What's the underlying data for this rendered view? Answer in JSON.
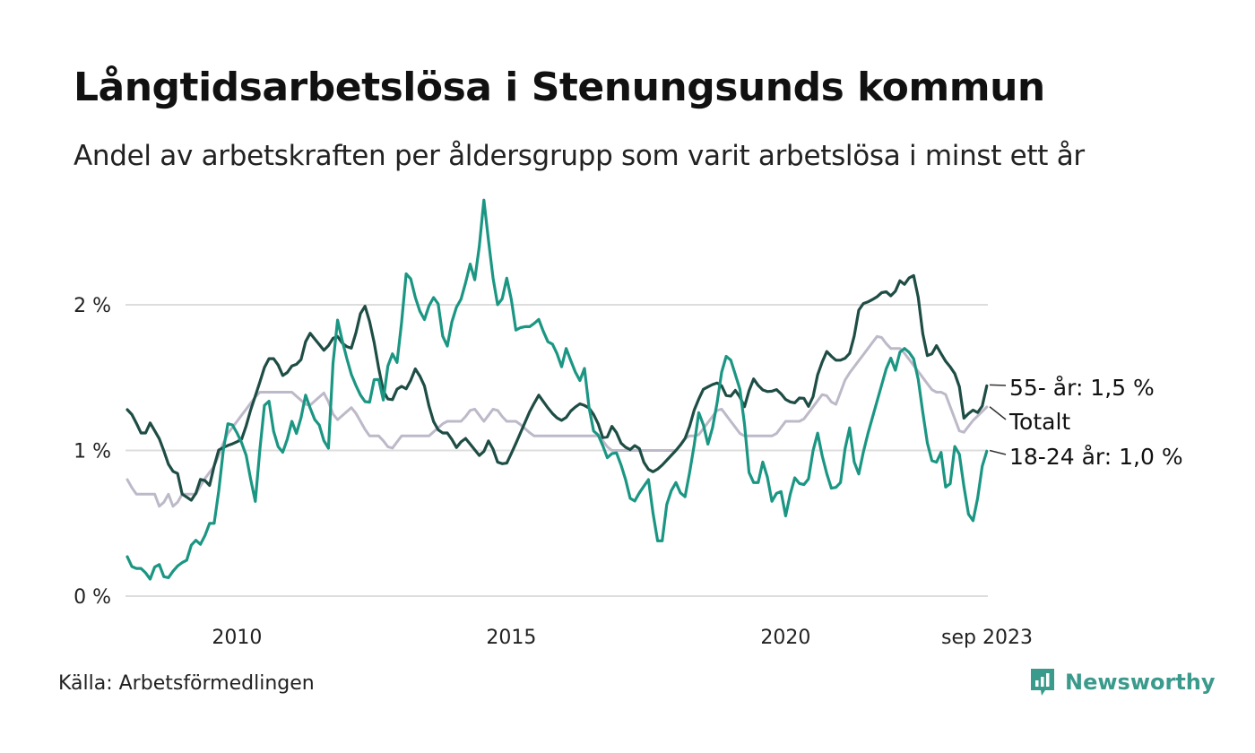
{
  "title": "Långtidsarbetslösa i Stenungsunds kommun",
  "subtitle": "Andel av arbetskraften per åldersgrupp som varit arbetslösa i minst ett år",
  "source": "Källa: Arbetsförmedlingen",
  "brand": "Newsworthy",
  "colors": {
    "older": "#1e4d45",
    "young": "#1b9683",
    "total": "#bdb9c9",
    "grid": "#dddddd",
    "brand": "#3a9a8c"
  },
  "chart_data": {
    "type": "line",
    "x_start": 2008.0,
    "x_step": 0.08333,
    "x_range": [
      2008.0,
      2023.67
    ],
    "ylim": [
      0,
      2.8
    ],
    "yticks": [
      {
        "value": 0,
        "label": "0 %"
      },
      {
        "value": 1,
        "label": "1 %"
      },
      {
        "value": 2,
        "label": "2 %"
      }
    ],
    "xticks": [
      {
        "value": 2010,
        "label": "2010"
      },
      {
        "value": 2015,
        "label": "2015"
      },
      {
        "value": 2020,
        "label": "2020"
      },
      {
        "value": 2023.67,
        "label": "sep 2023"
      }
    ],
    "grid": true,
    "series": [
      {
        "key": "total",
        "name": "Totalt",
        "label": "Totalt",
        "anchors": [
          [
            2008.0,
            0.8
          ],
          [
            2008.15,
            0.7
          ],
          [
            2008.5,
            0.7
          ],
          [
            2008.6,
            0.6
          ],
          [
            2008.75,
            0.7
          ],
          [
            2008.85,
            0.6
          ],
          [
            2009.0,
            0.7
          ],
          [
            2009.25,
            0.7
          ],
          [
            2009.4,
            0.8
          ],
          [
            2009.6,
            0.9
          ],
          [
            2009.8,
            1.1
          ],
          [
            2010.0,
            1.2
          ],
          [
            2010.2,
            1.3
          ],
          [
            2010.4,
            1.4
          ],
          [
            2011.0,
            1.4
          ],
          [
            2011.3,
            1.3
          ],
          [
            2011.6,
            1.4
          ],
          [
            2011.8,
            1.2
          ],
          [
            2012.1,
            1.3
          ],
          [
            2012.4,
            1.1
          ],
          [
            2012.6,
            1.1
          ],
          [
            2012.8,
            1.0
          ],
          [
            2013.0,
            1.1
          ],
          [
            2013.5,
            1.1
          ],
          [
            2013.8,
            1.2
          ],
          [
            2014.1,
            1.2
          ],
          [
            2014.3,
            1.3
          ],
          [
            2014.5,
            1.2
          ],
          [
            2014.7,
            1.3
          ],
          [
            2014.9,
            1.2
          ],
          [
            2015.1,
            1.2
          ],
          [
            2015.4,
            1.1
          ],
          [
            2016.0,
            1.1
          ],
          [
            2016.3,
            1.1
          ],
          [
            2016.6,
            1.1
          ],
          [
            2016.8,
            1.0
          ],
          [
            2017.2,
            1.0
          ],
          [
            2017.5,
            1.0
          ],
          [
            2017.8,
            1.0
          ],
          [
            2018.0,
            1.0
          ],
          [
            2018.2,
            1.1
          ],
          [
            2018.4,
            1.1
          ],
          [
            2018.6,
            1.2
          ],
          [
            2018.8,
            1.3
          ],
          [
            2019.0,
            1.2
          ],
          [
            2019.2,
            1.1
          ],
          [
            2019.5,
            1.1
          ],
          [
            2019.8,
            1.1
          ],
          [
            2020.0,
            1.2
          ],
          [
            2020.3,
            1.2
          ],
          [
            2020.5,
            1.3
          ],
          [
            2020.7,
            1.4
          ],
          [
            2020.9,
            1.3
          ],
          [
            2021.1,
            1.5
          ],
          [
            2021.3,
            1.6
          ],
          [
            2021.5,
            1.7
          ],
          [
            2021.7,
            1.8
          ],
          [
            2021.9,
            1.7
          ],
          [
            2022.1,
            1.7
          ],
          [
            2022.3,
            1.6
          ],
          [
            2022.5,
            1.5
          ],
          [
            2022.7,
            1.4
          ],
          [
            2022.9,
            1.4
          ],
          [
            2023.1,
            1.2
          ],
          [
            2023.2,
            1.1
          ],
          [
            2023.4,
            1.2
          ],
          [
            2023.67,
            1.3
          ]
        ]
      },
      {
        "key": "older",
        "name": "55- år",
        "label": "55- år: 1,5 %",
        "anchors": [
          [
            2008.0,
            1.28
          ],
          [
            2008.1,
            1.24
          ],
          [
            2008.3,
            1.08
          ],
          [
            2008.4,
            1.2
          ],
          [
            2008.6,
            1.07
          ],
          [
            2008.8,
            0.85
          ],
          [
            2008.9,
            0.87
          ],
          [
            2009.0,
            0.7
          ],
          [
            2009.2,
            0.65
          ],
          [
            2009.35,
            0.82
          ],
          [
            2009.5,
            0.76
          ],
          [
            2009.65,
            1.0
          ],
          [
            2009.8,
            1.03
          ],
          [
            2009.95,
            1.05
          ],
          [
            2010.1,
            1.08
          ],
          [
            2010.25,
            1.28
          ],
          [
            2010.4,
            1.45
          ],
          [
            2010.55,
            1.63
          ],
          [
            2010.7,
            1.63
          ],
          [
            2010.85,
            1.5
          ],
          [
            2011.0,
            1.58
          ],
          [
            2011.15,
            1.6
          ],
          [
            2011.3,
            1.82
          ],
          [
            2011.45,
            1.75
          ],
          [
            2011.6,
            1.68
          ],
          [
            2011.8,
            1.8
          ],
          [
            2011.95,
            1.72
          ],
          [
            2012.1,
            1.7
          ],
          [
            2012.25,
            1.94
          ],
          [
            2012.35,
            2.0
          ],
          [
            2012.5,
            1.74
          ],
          [
            2012.65,
            1.42
          ],
          [
            2012.8,
            1.32
          ],
          [
            2012.95,
            1.45
          ],
          [
            2013.1,
            1.42
          ],
          [
            2013.25,
            1.56
          ],
          [
            2013.4,
            1.47
          ],
          [
            2013.55,
            1.22
          ],
          [
            2013.7,
            1.12
          ],
          [
            2013.85,
            1.12
          ],
          [
            2014.0,
            1.02
          ],
          [
            2014.15,
            1.09
          ],
          [
            2014.3,
            1.02
          ],
          [
            2014.45,
            0.95
          ],
          [
            2014.6,
            1.08
          ],
          [
            2014.75,
            0.92
          ],
          [
            2014.9,
            0.9
          ],
          [
            2015.05,
            1.02
          ],
          [
            2015.2,
            1.15
          ],
          [
            2015.35,
            1.28
          ],
          [
            2015.5,
            1.38
          ],
          [
            2015.65,
            1.3
          ],
          [
            2015.8,
            1.23
          ],
          [
            2015.95,
            1.2
          ],
          [
            2016.1,
            1.28
          ],
          [
            2016.25,
            1.32
          ],
          [
            2016.4,
            1.3
          ],
          [
            2016.55,
            1.22
          ],
          [
            2016.7,
            1.05
          ],
          [
            2016.85,
            1.18
          ],
          [
            2017.0,
            1.05
          ],
          [
            2017.15,
            1.0
          ],
          [
            2017.3,
            1.05
          ],
          [
            2017.45,
            0.88
          ],
          [
            2017.6,
            0.85
          ],
          [
            2017.75,
            0.9
          ],
          [
            2017.9,
            0.96
          ],
          [
            2018.05,
            1.02
          ],
          [
            2018.2,
            1.1
          ],
          [
            2018.35,
            1.3
          ],
          [
            2018.5,
            1.42
          ],
          [
            2018.65,
            1.45
          ],
          [
            2018.8,
            1.47
          ],
          [
            2018.95,
            1.35
          ],
          [
            2019.1,
            1.42
          ],
          [
            2019.25,
            1.3
          ],
          [
            2019.4,
            1.5
          ],
          [
            2019.55,
            1.42
          ],
          [
            2019.7,
            1.4
          ],
          [
            2019.85,
            1.42
          ],
          [
            2020.0,
            1.35
          ],
          [
            2020.15,
            1.32
          ],
          [
            2020.3,
            1.38
          ],
          [
            2020.45,
            1.28
          ],
          [
            2020.6,
            1.55
          ],
          [
            2020.75,
            1.68
          ],
          [
            2020.9,
            1.62
          ],
          [
            2021.05,
            1.62
          ],
          [
            2021.2,
            1.68
          ],
          [
            2021.35,
            2.0
          ],
          [
            2021.5,
            2.02
          ],
          [
            2021.65,
            2.05
          ],
          [
            2021.8,
            2.1
          ],
          [
            2021.95,
            2.05
          ],
          [
            2022.1,
            2.18
          ],
          [
            2022.2,
            2.12
          ],
          [
            2022.3,
            2.25
          ],
          [
            2022.4,
            2.1
          ],
          [
            2022.5,
            1.8
          ],
          [
            2022.6,
            1.62
          ],
          [
            2022.75,
            1.72
          ],
          [
            2022.9,
            1.62
          ],
          [
            2023.05,
            1.55
          ],
          [
            2023.15,
            1.48
          ],
          [
            2023.25,
            1.22
          ],
          [
            2023.4,
            1.28
          ],
          [
            2023.55,
            1.25
          ],
          [
            2023.67,
            1.45
          ]
        ]
      },
      {
        "key": "young",
        "name": "18-24 år",
        "label": "18-24 år: 1,0 %",
        "anchors": [
          [
            2008.0,
            0.27
          ],
          [
            2008.1,
            0.19
          ],
          [
            2008.3,
            0.19
          ],
          [
            2008.4,
            0.1
          ],
          [
            2008.55,
            0.25
          ],
          [
            2008.7,
            0.1
          ],
          [
            2008.85,
            0.18
          ],
          [
            2008.95,
            0.22
          ],
          [
            2009.1,
            0.25
          ],
          [
            2009.2,
            0.4
          ],
          [
            2009.35,
            0.35
          ],
          [
            2009.5,
            0.5
          ],
          [
            2009.6,
            0.5
          ],
          [
            2009.75,
            1.0
          ],
          [
            2009.85,
            1.22
          ],
          [
            2010.0,
            1.12
          ],
          [
            2010.15,
            1.0
          ],
          [
            2010.25,
            0.8
          ],
          [
            2010.35,
            0.62
          ],
          [
            2010.45,
            1.2
          ],
          [
            2010.55,
            1.42
          ],
          [
            2010.7,
            1.05
          ],
          [
            2010.85,
            0.98
          ],
          [
            2011.0,
            1.2
          ],
          [
            2011.1,
            1.1
          ],
          [
            2011.25,
            1.38
          ],
          [
            2011.4,
            1.22
          ],
          [
            2011.55,
            1.15
          ],
          [
            2011.65,
            0.9
          ],
          [
            2011.8,
            1.95
          ],
          [
            2011.95,
            1.7
          ],
          [
            2012.1,
            1.5
          ],
          [
            2012.25,
            1.38
          ],
          [
            2012.4,
            1.3
          ],
          [
            2012.55,
            1.58
          ],
          [
            2012.65,
            1.3
          ],
          [
            2012.8,
            1.72
          ],
          [
            2012.9,
            1.55
          ],
          [
            2013.0,
            1.88
          ],
          [
            2013.1,
            2.28
          ],
          [
            2013.25,
            2.05
          ],
          [
            2013.4,
            1.88
          ],
          [
            2013.55,
            2.05
          ],
          [
            2013.65,
            2.05
          ],
          [
            2013.8,
            1.65
          ],
          [
            2013.95,
            1.95
          ],
          [
            2014.1,
            2.05
          ],
          [
            2014.25,
            2.28
          ],
          [
            2014.35,
            2.15
          ],
          [
            2014.5,
            2.72
          ],
          [
            2014.65,
            2.22
          ],
          [
            2014.75,
            2.0
          ],
          [
            2014.85,
            2.05
          ],
          [
            2014.95,
            2.25
          ],
          [
            2015.05,
            1.82
          ],
          [
            2015.2,
            1.85
          ],
          [
            2015.35,
            1.85
          ],
          [
            2015.5,
            1.9
          ],
          [
            2015.65,
            1.75
          ],
          [
            2015.8,
            1.72
          ],
          [
            2015.9,
            1.55
          ],
          [
            2016.0,
            1.7
          ],
          [
            2016.15,
            1.55
          ],
          [
            2016.25,
            1.48
          ],
          [
            2016.35,
            1.58
          ],
          [
            2016.45,
            1.15
          ],
          [
            2016.6,
            1.1
          ],
          [
            2016.75,
            0.95
          ],
          [
            2016.9,
            1.0
          ],
          [
            2017.05,
            0.85
          ],
          [
            2017.2,
            0.62
          ],
          [
            2017.35,
            0.72
          ],
          [
            2017.5,
            0.8
          ],
          [
            2017.65,
            0.38
          ],
          [
            2017.75,
            0.38
          ],
          [
            2017.85,
            0.68
          ],
          [
            2018.0,
            0.78
          ],
          [
            2018.15,
            0.65
          ],
          [
            2018.3,
            0.95
          ],
          [
            2018.45,
            1.35
          ],
          [
            2018.55,
            1.0
          ],
          [
            2018.7,
            1.2
          ],
          [
            2018.85,
            1.58
          ],
          [
            2018.95,
            1.68
          ],
          [
            2019.1,
            1.5
          ],
          [
            2019.2,
            1.38
          ],
          [
            2019.35,
            0.78
          ],
          [
            2019.5,
            0.78
          ],
          [
            2019.6,
            0.95
          ],
          [
            2019.75,
            0.65
          ],
          [
            2019.9,
            0.75
          ],
          [
            2020.0,
            0.55
          ],
          [
            2020.15,
            0.82
          ],
          [
            2020.3,
            0.75
          ],
          [
            2020.45,
            0.82
          ],
          [
            2020.55,
            1.18
          ],
          [
            2020.7,
            0.9
          ],
          [
            2020.85,
            0.72
          ],
          [
            2021.0,
            0.78
          ],
          [
            2021.15,
            1.2
          ],
          [
            2021.3,
            0.78
          ],
          [
            2021.45,
            1.05
          ],
          [
            2021.6,
            1.25
          ],
          [
            2021.75,
            1.45
          ],
          [
            2021.9,
            1.65
          ],
          [
            2022.0,
            1.55
          ],
          [
            2022.1,
            1.7
          ],
          [
            2022.2,
            1.7
          ],
          [
            2022.35,
            1.62
          ],
          [
            2022.45,
            1.42
          ],
          [
            2022.55,
            1.1
          ],
          [
            2022.7,
            0.88
          ],
          [
            2022.85,
            1.0
          ],
          [
            2022.95,
            0.62
          ],
          [
            2023.1,
            1.08
          ],
          [
            2023.2,
            0.92
          ],
          [
            2023.3,
            0.58
          ],
          [
            2023.45,
            0.5
          ],
          [
            2023.55,
            0.85
          ],
          [
            2023.67,
            1.0
          ]
        ]
      }
    ]
  }
}
